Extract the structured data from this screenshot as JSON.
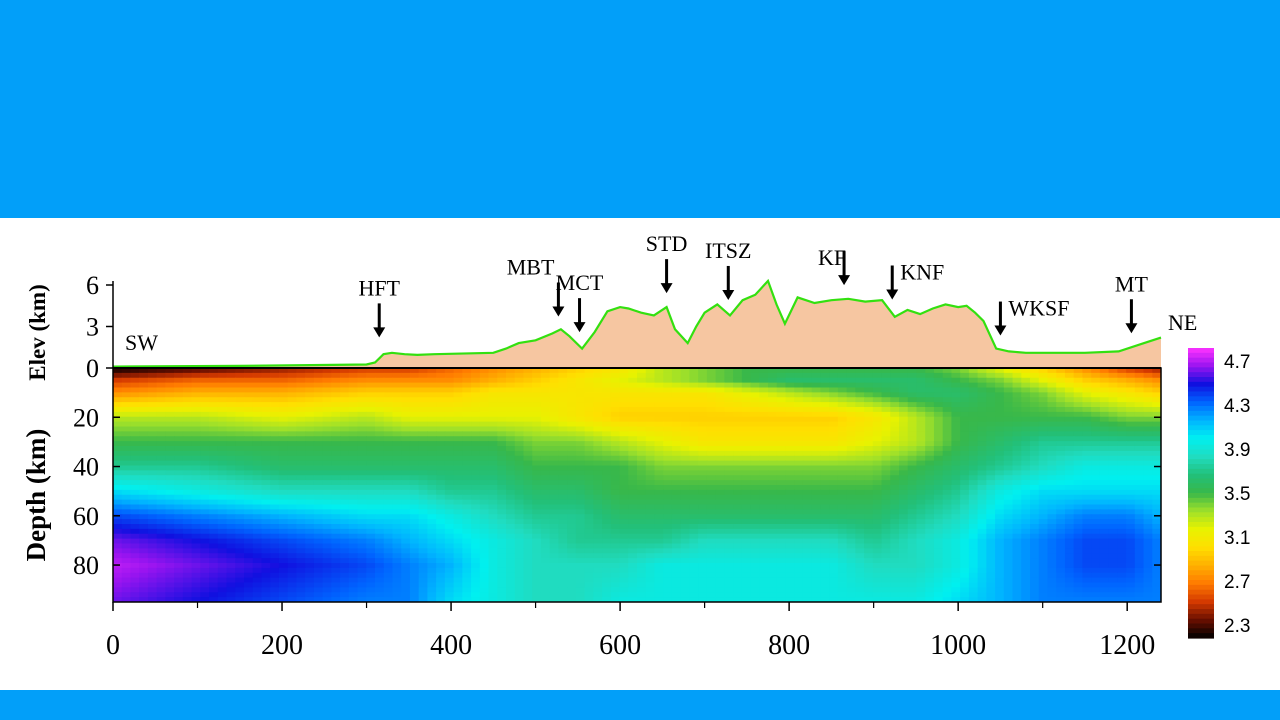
{
  "colors": {
    "band": "#029ff9",
    "topography_line": "#33e010",
    "topography_fill": "#f6c6a1"
  },
  "chart_data": {
    "type": "heatmap",
    "colormap_name": "shear-wave velocity (km/s)",
    "xlim": [
      0,
      1240
    ],
    "x_ticks": [
      0,
      200,
      400,
      600,
      800,
      1000,
      1200
    ],
    "x_tick_labels": [
      "0",
      "200",
      "400",
      "600",
      "800",
      "1000",
      "1200"
    ],
    "elevation_panel": {
      "ylabel": "Elev (km)",
      "ylim": [
        0,
        6
      ],
      "y_ticks": [
        0,
        3,
        6
      ],
      "y_tick_labels": [
        "0",
        "3",
        "6"
      ],
      "side_labels": {
        "left": "SW",
        "right": "NE"
      },
      "topography": {
        "x": [
          0,
          150,
          300,
          310,
          320,
          330,
          345,
          360,
          380,
          450,
          465,
          480,
          500,
          520,
          530,
          540,
          555,
          570,
          585,
          600,
          610,
          625,
          640,
          655,
          665,
          680,
          690,
          700,
          715,
          730,
          745,
          760,
          775,
          785,
          795,
          810,
          830,
          850,
          870,
          890,
          910,
          925,
          940,
          955,
          970,
          985,
          1000,
          1010,
          1020,
          1030,
          1045,
          1060,
          1080,
          1100,
          1150,
          1190,
          1220,
          1240
        ],
        "y": [
          0.1,
          0.15,
          0.25,
          0.4,
          1.0,
          1.1,
          1.0,
          0.95,
          1.0,
          1.1,
          1.4,
          1.8,
          2.0,
          2.5,
          2.8,
          2.3,
          1.4,
          2.6,
          4.1,
          4.4,
          4.3,
          4.0,
          3.8,
          4.4,
          2.8,
          1.8,
          3.0,
          4.0,
          4.6,
          3.8,
          4.9,
          5.3,
          6.3,
          4.6,
          3.2,
          5.1,
          4.7,
          4.9,
          5.0,
          4.8,
          4.9,
          3.7,
          4.2,
          3.9,
          4.3,
          4.6,
          4.4,
          4.5,
          4.0,
          3.4,
          1.4,
          1.2,
          1.1,
          1.1,
          1.1,
          1.2,
          1.8,
          2.2
        ]
      },
      "faults": [
        {
          "label": "HFT",
          "x": 315
        },
        {
          "label": "MBT",
          "x": 527
        },
        {
          "label": "MCT",
          "x": 552
        },
        {
          "label": "STD",
          "x": 655
        },
        {
          "label": "ITSZ",
          "x": 728
        },
        {
          "label": "KF",
          "x": 865
        },
        {
          "label": "KNF",
          "x": 922
        },
        {
          "label": "WKSF",
          "x": 1050
        },
        {
          "label": "MT",
          "x": 1205
        }
      ]
    },
    "depth_panel": {
      "ylabel": "Depth (km)",
      "ylim": [
        0,
        95
      ],
      "y_ticks": [
        20,
        40,
        60,
        80
      ],
      "y_tick_labels": [
        "20",
        "40",
        "60",
        "80"
      ],
      "velocity_model": {
        "x": [
          0,
          100,
          200,
          300,
          350,
          400,
          450,
          500,
          550,
          600,
          650,
          700,
          750,
          800,
          850,
          900,
          950,
          1000,
          1050,
          1100,
          1150,
          1200,
          1240
        ],
        "depth": [
          0,
          5,
          10,
          20,
          30,
          40,
          50,
          60,
          70,
          80,
          95
        ],
        "values": [
          [
            2.3,
            2.4,
            2.5,
            2.6,
            2.6,
            2.7,
            2.8,
            2.9,
            3.0,
            3.1,
            3.3,
            3.4,
            3.5,
            3.5,
            3.5,
            3.5,
            3.5,
            3.4,
            3.2,
            3.0,
            2.8,
            2.6,
            2.5
          ],
          [
            2.6,
            2.7,
            2.7,
            2.8,
            2.8,
            2.8,
            2.9,
            3.0,
            3.1,
            3.2,
            3.3,
            3.4,
            3.5,
            3.6,
            3.6,
            3.6,
            3.6,
            3.5,
            3.4,
            3.2,
            3.0,
            2.9,
            2.8
          ],
          [
            2.8,
            2.9,
            2.9,
            3.0,
            3.0,
            3.0,
            3.1,
            3.1,
            3.1,
            3.1,
            3.1,
            3.1,
            3.2,
            3.3,
            3.4,
            3.5,
            3.6,
            3.6,
            3.5,
            3.4,
            3.2,
            3.1,
            3.0
          ],
          [
            3.3,
            3.3,
            3.2,
            3.3,
            3.2,
            3.2,
            3.2,
            3.2,
            3.1,
            3.0,
            3.0,
            3.0,
            3.0,
            3.0,
            3.0,
            3.1,
            3.3,
            3.5,
            3.5,
            3.5,
            3.5,
            3.4,
            3.4
          ],
          [
            3.5,
            3.5,
            3.5,
            3.5,
            3.5,
            3.5,
            3.5,
            3.4,
            3.4,
            3.3,
            3.2,
            3.1,
            3.1,
            3.1,
            3.1,
            3.2,
            3.3,
            3.5,
            3.6,
            3.7,
            3.7,
            3.7,
            3.7
          ],
          [
            3.7,
            3.7,
            3.6,
            3.6,
            3.6,
            3.6,
            3.6,
            3.5,
            3.5,
            3.5,
            3.4,
            3.4,
            3.4,
            3.4,
            3.4,
            3.4,
            3.5,
            3.6,
            3.7,
            3.8,
            3.9,
            3.9,
            3.9
          ],
          [
            4.0,
            3.9,
            3.8,
            3.8,
            3.8,
            3.7,
            3.7,
            3.6,
            3.6,
            3.5,
            3.5,
            3.5,
            3.5,
            3.5,
            3.5,
            3.5,
            3.6,
            3.7,
            3.9,
            4.0,
            4.0,
            4.0,
            4.0
          ],
          [
            4.3,
            4.2,
            4.1,
            4.0,
            4.0,
            3.9,
            3.8,
            3.7,
            3.7,
            3.6,
            3.6,
            3.6,
            3.6,
            3.6,
            3.6,
            3.6,
            3.7,
            3.8,
            4.0,
            4.1,
            4.2,
            4.2,
            4.1
          ],
          [
            4.5,
            4.4,
            4.3,
            4.2,
            4.1,
            4.0,
            3.9,
            3.8,
            3.7,
            3.7,
            3.7,
            3.8,
            3.8,
            3.8,
            3.8,
            3.7,
            3.8,
            3.9,
            4.1,
            4.2,
            4.3,
            4.3,
            4.2
          ],
          [
            4.6,
            4.5,
            4.4,
            4.3,
            4.2,
            4.1,
            3.9,
            3.8,
            3.8,
            3.8,
            3.9,
            3.9,
            3.9,
            3.9,
            3.9,
            3.8,
            3.8,
            3.9,
            4.1,
            4.2,
            4.3,
            4.3,
            4.2
          ],
          [
            4.5,
            4.4,
            4.3,
            4.2,
            4.2,
            4.0,
            3.9,
            3.8,
            3.8,
            3.9,
            3.9,
            3.9,
            3.9,
            3.9,
            3.9,
            3.9,
            3.9,
            4.0,
            4.1,
            4.2,
            4.2,
            4.2,
            4.2
          ]
        ]
      }
    },
    "colorbar": {
      "range": [
        2.3,
        4.7
      ],
      "tick_labels": [
        "4.7",
        "4.3",
        "3.9",
        "3.5",
        "3.1",
        "2.7",
        "2.3"
      ],
      "stops": [
        {
          "v": 2.3,
          "color": "#000000"
        },
        {
          "v": 2.45,
          "color": "#6a0f00"
        },
        {
          "v": 2.6,
          "color": "#d43a00"
        },
        {
          "v": 2.75,
          "color": "#ff7a00"
        },
        {
          "v": 2.9,
          "color": "#ffb000"
        },
        {
          "v": 3.05,
          "color": "#ffdf00"
        },
        {
          "v": 3.2,
          "color": "#e8f200"
        },
        {
          "v": 3.35,
          "color": "#9ee02a"
        },
        {
          "v": 3.5,
          "color": "#38b84a"
        },
        {
          "v": 3.65,
          "color": "#22c07a"
        },
        {
          "v": 3.8,
          "color": "#20dcc0"
        },
        {
          "v": 3.95,
          "color": "#00f0f0"
        },
        {
          "v": 4.1,
          "color": "#00b4ff"
        },
        {
          "v": 4.25,
          "color": "#0064ff"
        },
        {
          "v": 4.4,
          "color": "#1010e0"
        },
        {
          "v": 4.55,
          "color": "#9a14f0"
        },
        {
          "v": 4.7,
          "color": "#ff33ff"
        }
      ]
    }
  }
}
